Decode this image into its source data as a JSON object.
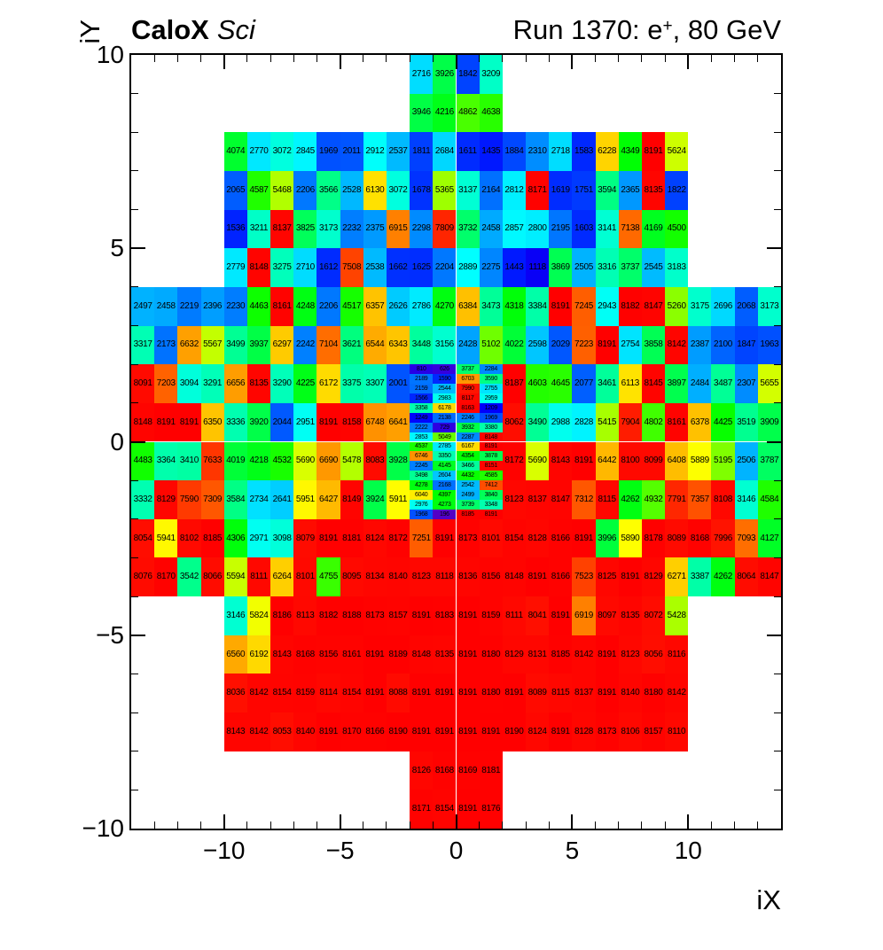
{
  "header": {
    "left_bold": "CaloX",
    "left_italic": "Sci",
    "right_prefix": "Run 1370: e",
    "right_sup": "+",
    "right_suffix": ", 80 GeV"
  },
  "axes": {
    "x_title": "iX",
    "y_title": "iY",
    "x_tick_values": [
      -10,
      -5,
      0,
      5,
      10
    ],
    "x_tick_labels": [
      "−10",
      "−5",
      "0",
      "5",
      "10"
    ],
    "y_tick_values": [
      10,
      5,
      0,
      -5,
      -10
    ],
    "y_tick_labels": [
      "10",
      "5",
      "0",
      "−5",
      "−10"
    ],
    "x_range": [
      -14,
      14
    ],
    "y_range": [
      -10,
      10
    ]
  },
  "chart_data": {
    "type": "heatmap",
    "title": "CaloX Sci  |  Run 1370: e+, 80 GeV",
    "xlabel": "iX",
    "ylabel": "iY",
    "x_range": [
      -14,
      14
    ],
    "y_range": [
      -10,
      10
    ],
    "z_range": [
      0,
      8191
    ],
    "palette": "rainbow violet-blue-cyan-green-yellow-orange-red",
    "grid": false,
    "coarse_rows": [
      {
        "iy_top": 10,
        "ix_left": -2,
        "values": [
          2716,
          3926,
          1842,
          3209
        ]
      },
      {
        "iy_top": 9,
        "ix_left": -2,
        "values": [
          3946,
          4216,
          4862,
          4638
        ]
      },
      {
        "iy_top": 8,
        "ix_left": -10,
        "values": [
          4074,
          2770,
          3072,
          2845,
          1969,
          2011,
          2912,
          2537,
          1811,
          2684,
          1611,
          1435,
          1884,
          2310,
          2718,
          1583,
          6228,
          4349,
          8191,
          5624
        ]
      },
      {
        "iy_top": 7,
        "ix_left": -10,
        "values": [
          2065,
          4587,
          5468,
          2206,
          3566,
          2528,
          6130,
          3072,
          1678,
          5365,
          3137,
          2164,
          2812,
          8171,
          1619,
          1751,
          3594,
          2365,
          8135,
          1822
        ]
      },
      {
        "iy_top": 6,
        "ix_left": -10,
        "values": [
          1536,
          3211,
          8137,
          3825,
          3173,
          2232,
          2375,
          6915,
          2298,
          7809,
          3732,
          2458,
          2857,
          2800,
          2195,
          1603,
          3141,
          7138,
          4169,
          4500
        ]
      },
      {
        "iy_top": 5,
        "ix_left": -10,
        "values": [
          2779,
          8148,
          3275,
          2710,
          1612,
          7508,
          2538,
          1662,
          1625,
          2204,
          2889,
          2275,
          1443,
          1118,
          3869,
          2505,
          3316,
          3737,
          2545,
          3183
        ]
      },
      {
        "iy_top": 4,
        "ix_left": -14,
        "values": [
          2497,
          2458,
          2219,
          2396,
          2230,
          4463,
          8161,
          4248,
          2206,
          4517,
          6357,
          2626,
          2786,
          4270,
          6384,
          3473,
          4318,
          3384,
          8191,
          7245,
          2943,
          8182,
          8147,
          5260,
          3175,
          2696,
          2068,
          3173
        ]
      },
      {
        "iy_top": 3,
        "ix_left": -14,
        "values": [
          3317,
          2173,
          6632,
          5567,
          3499,
          3937,
          6297,
          2242,
          7104,
          3621,
          6544,
          6343,
          3448,
          3156,
          2428,
          5102,
          4022,
          2598,
          2029,
          7223,
          8191,
          2754,
          3858,
          8142,
          2387,
          2100,
          1847,
          1963
        ]
      },
      {
        "iy_top": 2,
        "ix_left": -14,
        "values": [
          8091,
          7203,
          3094,
          3291,
          6656,
          8135,
          3290,
          4225,
          6172,
          3375,
          3307,
          2001
        ]
      },
      {
        "iy_top": 2,
        "ix_left": 2,
        "values": [
          8187,
          4603,
          4645,
          2077,
          3461,
          6113,
          8145,
          3897,
          2484,
          3487,
          2307,
          5655
        ]
      },
      {
        "iy_top": 1,
        "ix_left": -14,
        "values": [
          8148,
          8191,
          8191,
          6350,
          3336,
          3920,
          2044,
          2951,
          8191,
          8158,
          6748,
          6641
        ]
      },
      {
        "iy_top": 1,
        "ix_left": 2,
        "values": [
          8062,
          3490,
          2988,
          2828,
          5415,
          7904,
          4802,
          8161,
          6378,
          4425,
          3519,
          3909
        ]
      },
      {
        "iy_top": 0,
        "ix_left": -14,
        "values": [
          4483,
          3364,
          3410,
          7633,
          4019,
          4218,
          4532,
          5690,
          6690,
          5478,
          8083,
          3928
        ]
      },
      {
        "iy_top": 0,
        "ix_left": 2,
        "values": [
          8172,
          5690,
          8143,
          8191,
          6442,
          8100,
          8099,
          6408,
          5889,
          5195,
          2506,
          3787
        ]
      },
      {
        "iy_top": -1,
        "ix_left": -14,
        "values": [
          3332,
          8129,
          7590,
          7309,
          3584,
          2734,
          2641,
          5951,
          6427,
          8149,
          3924,
          5911
        ]
      },
      {
        "iy_top": -1,
        "ix_left": 2,
        "values": [
          8123,
          8137,
          8147,
          7312,
          8115,
          4262,
          4932,
          7791,
          7357,
          8108,
          3146,
          4584
        ]
      },
      {
        "iy_top": -2,
        "ix_left": -14,
        "values": [
          8054,
          5941,
          8102,
          8185,
          4306,
          2971,
          3098,
          8079,
          8191,
          8181,
          8124,
          8172,
          7251,
          8191,
          8173,
          8101,
          8154,
          8128,
          8166,
          8191,
          3996,
          5890,
          8178,
          8089,
          8168,
          7996,
          7093,
          4127
        ]
      },
      {
        "iy_top": -3,
        "ix_left": -14,
        "values": [
          8076,
          8170,
          3542,
          8066,
          5594,
          8111,
          6264,
          8101,
          4755,
          8095,
          8134,
          8140,
          8123,
          8118,
          8136,
          8156,
          8148,
          8191,
          8166,
          7523,
          8125,
          8191,
          8129,
          6271,
          3387,
          4262,
          8064,
          8147
        ]
      },
      {
        "iy_top": -4,
        "ix_left": -10,
        "values": [
          3146,
          5824,
          8186,
          8113,
          8182,
          8188,
          8173,
          8157,
          8191,
          8183,
          8191,
          8159,
          8111,
          8041,
          8191,
          6919,
          8097,
          8135,
          8072,
          5428
        ]
      },
      {
        "iy_top": -5,
        "ix_left": -10,
        "values": [
          6560,
          6192,
          8143,
          8168,
          8156,
          8161,
          8191,
          8189,
          8148,
          8135,
          8191,
          8180,
          8129,
          8131,
          8185,
          8142,
          8191,
          8123,
          8056,
          8116
        ]
      },
      {
        "iy_top": -6,
        "ix_left": -10,
        "values": [
          8036,
          8142,
          8154,
          8159,
          8114,
          8154,
          8191,
          8088,
          8191,
          8191,
          8191,
          8180,
          8191,
          8089,
          8115,
          8137,
          8191,
          8140,
          8180,
          8142
        ]
      },
      {
        "iy_top": -7,
        "ix_left": -10,
        "values": [
          8143,
          8142,
          8053,
          8140,
          8191,
          8170,
          8166,
          8190,
          8191,
          8191,
          8191,
          8191,
          8190,
          8124,
          8191,
          8128,
          8173,
          8106,
          8157,
          8110
        ]
      },
      {
        "iy_top": -8,
        "ix_left": -2,
        "values": [
          8126,
          8168,
          8169,
          8181
        ]
      },
      {
        "iy_top": -9,
        "ix_left": -2,
        "values": [
          8171,
          8154,
          8191,
          8176
        ]
      }
    ],
    "fine_block": {
      "ix_left": -2,
      "iy_top": 2,
      "cell_w": 1,
      "cell_h": 0.25,
      "rows": [
        [
          810,
          626,
          3737,
          2284
        ],
        [
          2189,
          1590,
          6703,
          3590
        ],
        [
          2159,
          2544,
          7990,
          2755
        ],
        [
          1566,
          2983,
          8117,
          2959
        ],
        [
          3358,
          6178,
          8163,
          1209
        ],
        [
          1249,
          2138,
          2246,
          1969
        ],
        [
          2222,
          729,
          3932,
          3380
        ],
        [
          2853,
          5049,
          2287,
          8148
        ],
        [
          4537,
          2785,
          6167,
          8191
        ],
        [
          6746,
          3350,
          4354,
          3878
        ],
        [
          2245,
          4145,
          3466,
          8151
        ],
        [
          3498,
          2604,
          4432,
          4585
        ],
        [
          4278,
          2168,
          2542,
          7412
        ],
        [
          6040,
          4397,
          2499,
          3840
        ],
        [
          2976,
          4273,
          3739,
          3348
        ],
        [
          1968,
          196,
          8185,
          8191
        ]
      ]
    }
  }
}
